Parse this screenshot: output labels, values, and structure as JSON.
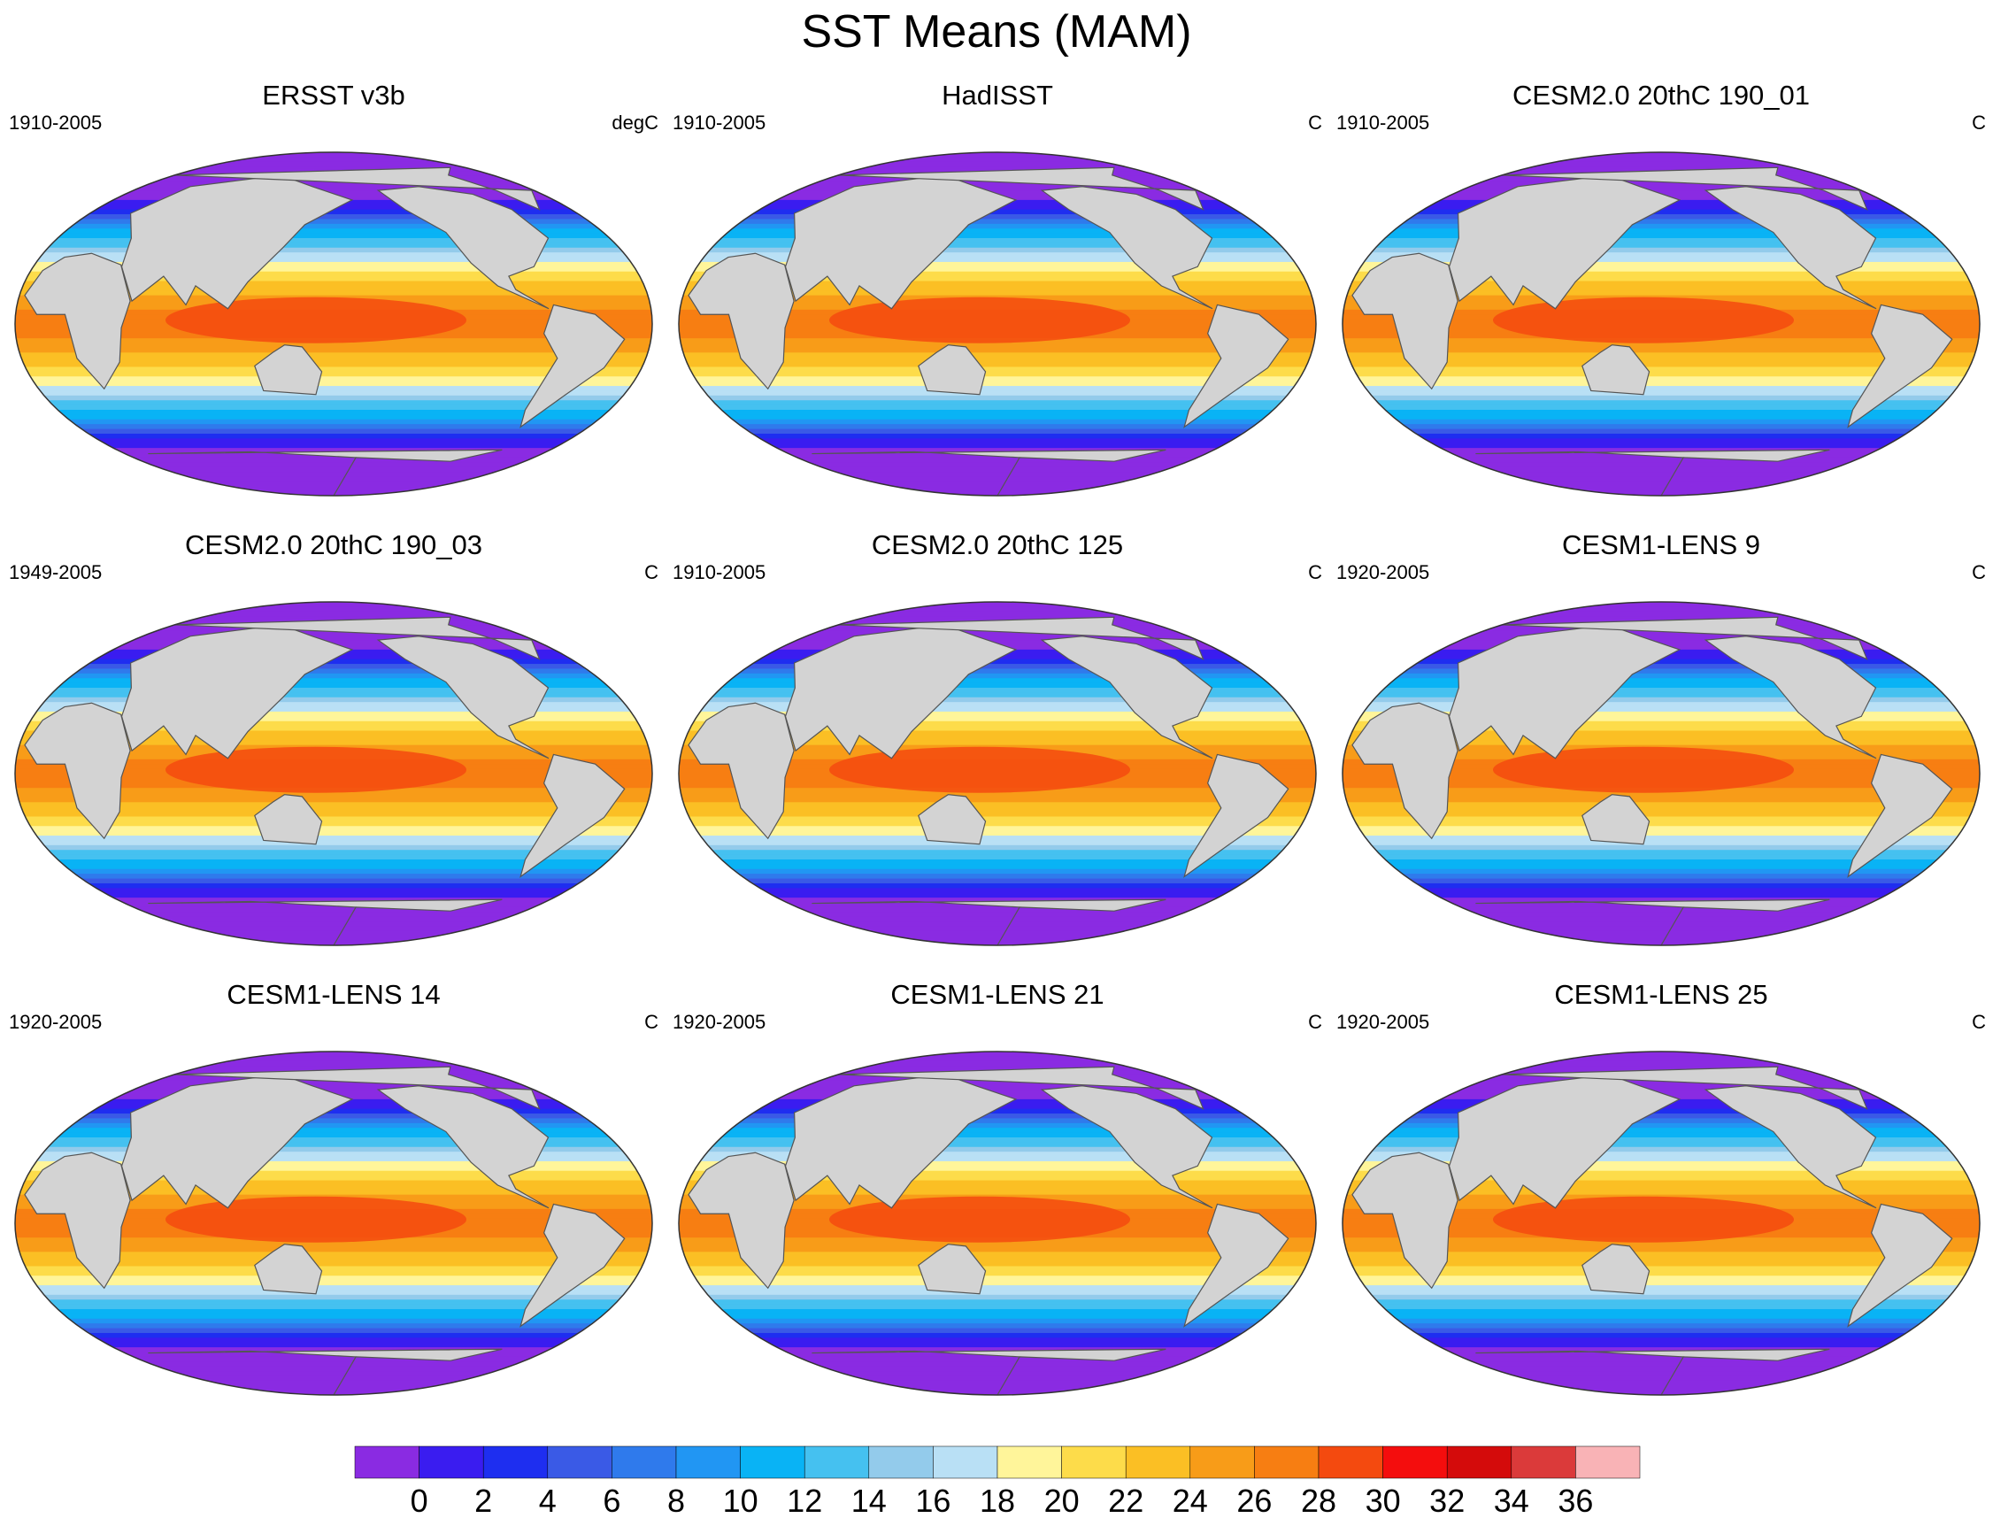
{
  "figure": {
    "title": "SST Means (MAM)"
  },
  "panels": [
    {
      "title": "ERSST v3b",
      "period": "1910-2005",
      "units": "degC"
    },
    {
      "title": "HadISST",
      "period": "1910-2005",
      "units": "C"
    },
    {
      "title": "CESM2.0 20thC 190_01",
      "period": "1910-2005",
      "units": "C"
    },
    {
      "title": "CESM2.0 20thC 190_03",
      "period": "1949-2005",
      "units": "C"
    },
    {
      "title": "CESM2.0 20thC 125",
      "period": "1910-2005",
      "units": "C"
    },
    {
      "title": "CESM1-LENS 9",
      "period": "1920-2005",
      "units": "C"
    },
    {
      "title": "CESM1-LENS 14",
      "period": "1920-2005",
      "units": "C"
    },
    {
      "title": "CESM1-LENS 21",
      "period": "1920-2005",
      "units": "C"
    },
    {
      "title": "CESM1-LENS 25",
      "period": "1920-2005",
      "units": "C"
    }
  ],
  "colorbar": {
    "labels": [
      "0",
      "2",
      "4",
      "6",
      "8",
      "10",
      "12",
      "14",
      "16",
      "18",
      "20",
      "22",
      "24",
      "26",
      "28",
      "30",
      "32",
      "34",
      "36"
    ],
    "colors": [
      "#8a2be2",
      "#3a1cf0",
      "#1e2ef0",
      "#3a5ae6",
      "#2f7aec",
      "#2196f3",
      "#09b3f5",
      "#45c1f0",
      "#93cbeb",
      "#b9e0f5",
      "#fff59a",
      "#fddc4a",
      "#fbbf24",
      "#f89c18",
      "#f77e12",
      "#f44a0f",
      "#f40d0d",
      "#d40b0b",
      "#db3a3a",
      "#f9b3b6"
    ],
    "land_color": "#d3d3d3"
  }
}
